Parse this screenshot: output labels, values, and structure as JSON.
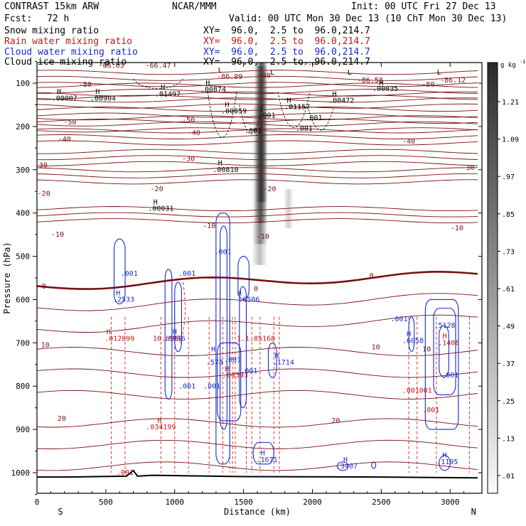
{
  "header": {
    "model": "CONTRAST 15km ARW",
    "fcst_label": "Fcst:",
    "fcst_value": "72 h",
    "org": "NCAR/MMM",
    "init": "Init: 00 UTC Fri 27 Dec 13",
    "valid": "Valid: 00 UTC Mon 30 Dec 13 (10 ChT Mon 30 Dec 13)"
  },
  "fields": [
    {
      "name": "Snow mixing ratio",
      "xy": "XY=  96.0,  2.5 to  96.0,214.7",
      "color": "#000000"
    },
    {
      "name": "Rain water mixing ratio",
      "xy": "XY=  96.0,  2.5 to  96.0,214.7",
      "color": "#c01818"
    },
    {
      "name": "Cloud water mixing ratio",
      "xy": "XY=  96.0,  2.5 to  96.0,214.7",
      "color": "#1a2ad0"
    },
    {
      "name": "Cloud ice mixing ratio",
      "xy": "XY=  96.0,  2.5 to  96.0,214.7",
      "color": "#000000"
    }
  ],
  "chart_data": {
    "type": "cross-section",
    "xlabel": "Distance (km)",
    "ylabel": "Pressure (hPa)",
    "xlim": [
      0,
      3200
    ],
    "ylim": [
      1050,
      50
    ],
    "x_ticks": [
      0,
      500,
      1000,
      1500,
      2000,
      2500,
      3000
    ],
    "y_ticks": [
      100,
      200,
      300,
      400,
      500,
      600,
      700,
      800,
      900,
      1000
    ],
    "x_end_labels": {
      "left": "S",
      "right": "N"
    },
    "colorbar": {
      "unit": "g kg",
      "unit_exp": "-1",
      "labels": [
        "1.21",
        "1.09",
        ".97",
        ".85",
        ".73",
        ".61",
        ".49",
        ".37",
        ".25",
        ".13",
        ".01"
      ]
    },
    "temperature_contours": {
      "color": "#7a1010",
      "levels": [
        -90,
        -80,
        -70,
        -60,
        -50,
        -40,
        -30,
        -20,
        -10,
        0,
        10,
        20
      ],
      "labels": [
        {
          "t": "-66.63",
          "x": 540,
          "p": 65
        },
        {
          "t": "-66.47",
          "x": 880,
          "p": 65
        },
        {
          "t": "-69.6",
          "x": 1950,
          "p": 58
        },
        {
          "t": "-86.89",
          "x": 1400,
          "p": 90
        },
        {
          "t": "-86.58",
          "x": 2420,
          "p": 98
        },
        {
          "t": "-86.12",
          "x": 3020,
          "p": 98
        },
        {
          "t": "-80",
          "x": 350,
          "p": 108
        },
        {
          "t": "-80",
          "x": 1650,
          "p": 88
        },
        {
          "t": "-80",
          "x": 2840,
          "p": 108
        },
        {
          "t": "-50",
          "x": 240,
          "p": 195
        },
        {
          "t": "-50",
          "x": 1100,
          "p": 190
        },
        {
          "t": "-40",
          "x": 200,
          "p": 235
        },
        {
          "t": "-40",
          "x": 1140,
          "p": 220
        },
        {
          "t": "-40",
          "x": 2700,
          "p": 240
        },
        {
          "t": "-30",
          "x": 30,
          "p": 295
        },
        {
          "t": "-30",
          "x": 1100,
          "p": 280
        },
        {
          "t": "-30",
          "x": 3130,
          "p": 300
        },
        {
          "t": "-20",
          "x": 50,
          "p": 360
        },
        {
          "t": "-20",
          "x": 870,
          "p": 350
        },
        {
          "t": "-20",
          "x": 1690,
          "p": 350
        },
        {
          "t": "-10",
          "x": 150,
          "p": 455
        },
        {
          "t": "-10",
          "x": 1640,
          "p": 460
        },
        {
          "t": "-10",
          "x": 1250,
          "p": 435
        },
        {
          "t": "-10",
          "x": 3050,
          "p": 440
        },
        {
          "t": "0",
          "x": 50,
          "p": 575
        },
        {
          "t": "0",
          "x": 2430,
          "p": 550
        },
        {
          "t": "0",
          "x": 1590,
          "p": 580
        },
        {
          "t": "10",
          "x": 60,
          "p": 710
        },
        {
          "t": "10",
          "x": 2460,
          "p": 715
        },
        {
          "t": "10",
          "x": 2830,
          "p": 720
        },
        {
          "t": "20",
          "x": 180,
          "p": 880
        },
        {
          "t": "20",
          "x": 2170,
          "p": 885
        }
      ]
    },
    "snow_labels": [
      {
        "t": "H",
        "x": 160,
        "p": 125
      },
      {
        "t": ".00007",
        "x": 200,
        "p": 140
      },
      {
        "t": "H",
        "x": 440,
        "p": 125
      },
      {
        "t": ".00904",
        "x": 480,
        "p": 140
      },
      {
        "t": "H",
        "x": 915,
        "p": 115
      },
      {
        "t": ".01497",
        "x": 950,
        "p": 130
      },
      {
        "t": "H",
        "x": 1240,
        "p": 105
      },
      {
        "t": ".00874",
        "x": 1280,
        "p": 120
      },
      {
        "t": "L",
        "x": 1330,
        "p": 75
      },
      {
        "t": "L",
        "x": 1710,
        "p": 80
      },
      {
        "t": "H",
        "x": 1380,
        "p": 155
      },
      {
        "t": ".00859",
        "x": 1430,
        "p": 170
      },
      {
        "t": "H",
        "x": 1830,
        "p": 145
      },
      {
        "t": ".01157",
        "x": 1890,
        "p": 160
      },
      {
        "t": "H",
        "x": 2160,
        "p": 130
      },
      {
        "t": ".00472",
        "x": 2210,
        "p": 145
      },
      {
        "t": "H",
        "x": 2500,
        "p": 105
      },
      {
        "t": ".00035",
        "x": 2530,
        "p": 118
      },
      {
        "t": "L",
        "x": 2270,
        "p": 80
      },
      {
        "t": "L",
        "x": 2920,
        "p": 80
      },
      {
        "t": ".001",
        "x": 1670,
        "p": 180
      },
      {
        "t": ".001",
        "x": 2010,
        "p": 185
      },
      {
        "t": ".001",
        "x": 1570,
        "p": 215
      },
      {
        "t": ".001",
        "x": 1940,
        "p": 210
      },
      {
        "t": "H",
        "x": 1330,
        "p": 290
      },
      {
        "t": ".00810",
        "x": 1370,
        "p": 305
      },
      {
        "t": "H",
        "x": 860,
        "p": 380
      },
      {
        "t": ".00031",
        "x": 900,
        "p": 395
      }
    ],
    "rain_labels": [
      {
        "t": "H",
        "x": 520,
        "p": 680
      },
      {
        "t": ".012899",
        "x": 600,
        "p": 695
      },
      {
        "t": "10.6956",
        "x": 950,
        "p": 695
      },
      {
        "t": "H",
        "x": 890,
        "p": 885
      },
      {
        "t": ".034199",
        "x": 900,
        "p": 900
      },
      {
        "t": "H",
        "x": 1380,
        "p": 765
      },
      {
        "t": ".04393",
        "x": 1440,
        "p": 780
      },
      {
        "t": "1.1.85168",
        "x": 1590,
        "p": 695
      },
      {
        "t": ".001",
        "x": 640,
        "p": 1005
      },
      {
        "t": ".001001",
        "x": 2760,
        "p": 815
      },
      {
        "t": ".001",
        "x": 2860,
        "p": 860
      },
      {
        "t": "H",
        "x": 2960,
        "p": 690
      },
      {
        "t": ".1408",
        "x": 2990,
        "p": 705
      }
    ],
    "cloud_water_labels": [
      {
        "t": ".001",
        "x": 1350,
        "p": 495
      },
      {
        "t": ".001",
        "x": 670,
        "p": 545
      },
      {
        "t": ".001",
        "x": 1090,
        "p": 545
      },
      {
        "t": "H",
        "x": 590,
        "p": 590
      },
      {
        "t": ".2533",
        "x": 630,
        "p": 605
      },
      {
        "t": "H",
        "x": 1470,
        "p": 590
      },
      {
        "t": ".6586",
        "x": 1540,
        "p": 605
      },
      {
        "t": "H",
        "x": 1000,
        "p": 680
      },
      {
        "t": ".6956",
        "x": 1000,
        "p": 695
      },
      {
        "t": "H",
        "x": 1280,
        "p": 720
      },
      {
        "t": ".578",
        "x": 1290,
        "p": 750
      },
      {
        "t": ".001",
        "x": 1420,
        "p": 745
      },
      {
        "t": ".001",
        "x": 1540,
        "p": 770
      },
      {
        "t": "H",
        "x": 1740,
        "p": 735
      },
      {
        "t": ".1714",
        "x": 1790,
        "p": 750
      },
      {
        "t": ".001",
        "x": 1090,
        "p": 805
      },
      {
        "t": ".001",
        "x": 1270,
        "p": 805
      },
      {
        "t": ".001",
        "x": 2630,
        "p": 650
      },
      {
        "t": "H",
        "x": 2700,
        "p": 685
      },
      {
        "t": ".6058",
        "x": 2730,
        "p": 700
      },
      {
        "t": ".5128",
        "x": 2960,
        "p": 665
      },
      {
        "t": ".001",
        "x": 3000,
        "p": 780
      },
      {
        "t": "H",
        "x": 1640,
        "p": 960
      },
      {
        "t": ".1671",
        "x": 1670,
        "p": 975
      },
      {
        "t": "H",
        "x": 2240,
        "p": 975
      },
      {
        "t": ".3407",
        "x": 2250,
        "p": 990
      },
      {
        "t": "H",
        "x": 2960,
        "p": 965
      },
      {
        "t": ".1195",
        "x": 2980,
        "p": 980
      }
    ]
  }
}
